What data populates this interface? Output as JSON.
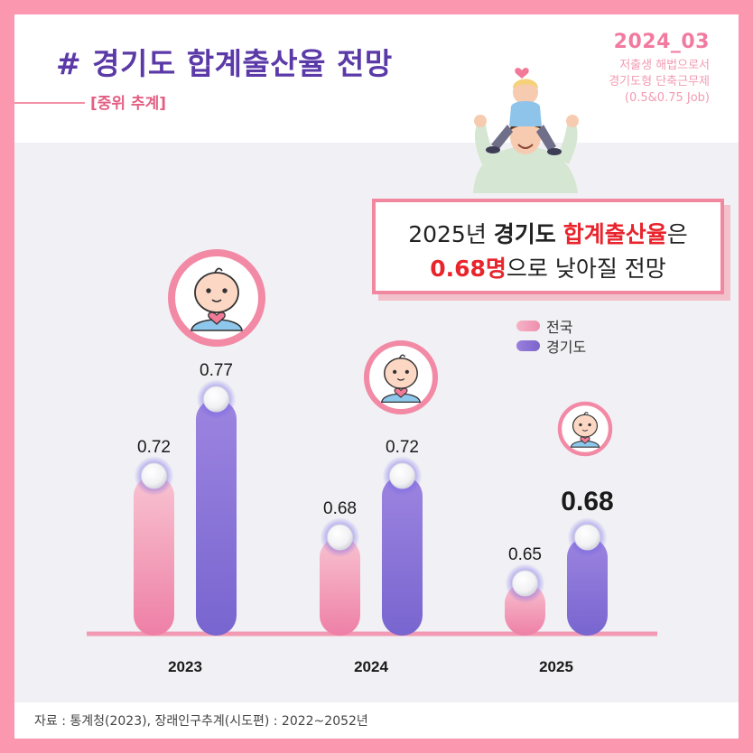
{
  "header": {
    "title": "# 경기도 합계출산율 전망",
    "subtitle": "[중위 추계]",
    "issue": "2024_03",
    "tagline": [
      "저출생 해법으로서",
      "경기도형 단축근무제",
      "(0.5&0.75 Job)"
    ]
  },
  "callout": {
    "line1_a": "2025년 ",
    "line1_b": "경기도",
    "line1_c": " ",
    "line1_d": "합계출산율",
    "line1_e": "은",
    "line2_a": "0.68명",
    "line2_b": "으로 낮아질 전망"
  },
  "legend": [
    {
      "label": "전국",
      "color": "#f29cb7"
    },
    {
      "label": "경기도",
      "color": "#8a6fd3"
    }
  ],
  "chart_data": {
    "type": "bar",
    "categories": [
      "2023",
      "2024",
      "2025"
    ],
    "series": [
      {
        "name": "전국",
        "values": [
          0.72,
          0.68,
          0.65
        ],
        "color": "#f29cb7"
      },
      {
        "name": "경기도",
        "values": [
          0.77,
          0.72,
          0.68
        ],
        "color": "#8a6fd3"
      }
    ],
    "value_labels": [
      [
        "0.72",
        "0.68",
        "0.65"
      ],
      [
        "0.77",
        "0.72",
        "0.68"
      ]
    ],
    "emphasized": "0.68",
    "ylim": [
      0.6,
      0.8
    ]
  },
  "source": "자료 : 통계청(2023), 장래인구추계(시도편) : 2022~2052년",
  "icons": [
    "baby-face-icon",
    "heart-icon",
    "family-illustration"
  ]
}
